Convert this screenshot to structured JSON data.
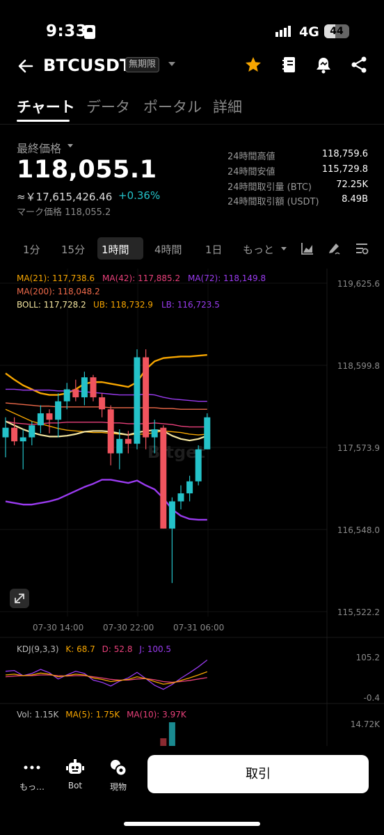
{
  "status_bar": {
    "time": "9:33",
    "network": "4G",
    "battery_level": "44",
    "battery_fraction": 0.44
  },
  "header": {
    "pair": "BTCUSDT",
    "contract_type": "無期限",
    "icons": [
      "back-arrow-icon",
      "star-icon",
      "notebook-icon",
      "bell-icon",
      "share-icon"
    ],
    "accent_color": "#F7A600"
  },
  "tabs": [
    {
      "label": "チャート",
      "active": true
    },
    {
      "label": "データ",
      "active": false
    },
    {
      "label": "ポータル",
      "active": false
    },
    {
      "label": "詳細",
      "active": false
    }
  ],
  "price": {
    "label": "最終価格",
    "last": "118,055.1",
    "fiat": "≈￥17,615,426.46",
    "change": "+0.36%",
    "change_color": "#24C2C9",
    "mark": "マーク価格 118,055.2"
  },
  "stats": [
    {
      "label": "24時間高値",
      "value": "118,759.6"
    },
    {
      "label": "24時間安値",
      "value": "115,729.8"
    },
    {
      "label": "24時間取引量 (BTC)",
      "value": "72.25K"
    },
    {
      "label": "24時間取引額 (USDT)",
      "value": "8.49B"
    }
  ],
  "intervals": {
    "items": [
      "1分",
      "15分",
      "1時間",
      "4時間",
      "1日"
    ],
    "active": "1時間",
    "more": "もっと",
    "tools": [
      "area-chart-icon",
      "draw-tool-icon",
      "indicator-settings-icon"
    ]
  },
  "chart": {
    "ma_legend": {
      "ma21": "MA(21): 117,738.6",
      "ma42": "MA(42): 117,885.2",
      "ma72": "MA(72): 118,149.8",
      "ma200": "MA(200): 118,048.2",
      "boll": "BOLL: 117,728.2",
      "ub": "UB: 118,732.9",
      "lb": "LB: 116,723.5"
    },
    "colors": {
      "ma21": "#F7A600",
      "ma42": "#E8407A",
      "ma72": "#9A3BF0",
      "ma200": "#F06A4A",
      "boll": "#F5E6A0",
      "up": "#24C2C9",
      "down": "#F0545E"
    },
    "price_axis": [
      "119,625.6",
      "118,599.8",
      "117,573.9",
      "116,548.0",
      "115,522.2"
    ],
    "time_axis": [
      "07-30 14:00",
      "07-30 22:00",
      "07-31 06:00"
    ],
    "watermark": "Bitget"
  },
  "chart_data": {
    "type": "candlestick",
    "ylim": [
      115522.2,
      119625.6
    ],
    "price_ticks": [
      119625.6,
      118599.8,
      117573.9,
      116548.0,
      115522.2
    ],
    "time_ticks": [
      "07-30 14:00",
      "07-30 22:00",
      "07-31 06:00"
    ],
    "candles": [
      [
        117700,
        117950,
        117450,
        117820
      ],
      [
        117820,
        117950,
        117600,
        117650
      ],
      [
        117650,
        117800,
        117300,
        117700
      ],
      [
        117700,
        117900,
        117600,
        117850
      ],
      [
        117850,
        118100,
        117750,
        118000
      ],
      [
        118000,
        118050,
        117750,
        117920
      ],
      [
        117920,
        118250,
        117700,
        118150
      ],
      [
        118150,
        118380,
        118050,
        118300
      ],
      [
        118300,
        118420,
        118150,
        118200
      ],
      [
        118200,
        118520,
        118100,
        118450
      ],
      [
        118450,
        118480,
        118150,
        118200
      ],
      [
        118200,
        118250,
        117950,
        118050
      ],
      [
        118050,
        118100,
        117350,
        117500
      ],
      [
        117500,
        117800,
        117300,
        117680
      ],
      [
        117680,
        117780,
        117500,
        117620
      ],
      [
        117620,
        118800,
        117550,
        118700
      ],
      [
        118700,
        118800,
        117550,
        117700
      ],
      [
        117700,
        117920,
        117500,
        117800
      ],
      [
        117820,
        117850,
        116560,
        116560
      ],
      [
        116560,
        116950,
        115880,
        116900
      ],
      [
        116900,
        117100,
        116800,
        117000
      ],
      [
        117000,
        117220,
        116900,
        117150
      ],
      [
        117150,
        117600,
        117100,
        117550
      ],
      [
        117550,
        118000,
        117550,
        117950
      ]
    ],
    "ma21": [
      118050,
      118000,
      117950,
      117900,
      117870,
      117840,
      117810,
      117790,
      117780,
      117770,
      117760,
      117760,
      117750,
      117740,
      117730,
      117740,
      117740,
      117760,
      117780,
      117770,
      117760,
      117740,
      117730,
      117740
    ],
    "ma42": [
      117900,
      117880,
      117870,
      117860,
      117870,
      117880,
      117880,
      117890,
      117890,
      117890,
      117890,
      117890,
      117880,
      117880,
      117870,
      117870,
      117870,
      117880,
      117870,
      117860,
      117840,
      117830,
      117830,
      117830
    ],
    "ma72": [
      118300,
      118300,
      118290,
      118290,
      118290,
      118290,
      118280,
      118280,
      118280,
      118270,
      118260,
      118250,
      118240,
      118230,
      118230,
      118230,
      118240,
      118230,
      118200,
      118180,
      118170,
      118160,
      118150,
      118150
    ],
    "ma200": [
      118130,
      118120,
      118110,
      118100,
      118090,
      118090,
      118080,
      118080,
      118080,
      118080,
      118080,
      118080,
      118070,
      118070,
      118070,
      118070,
      118070,
      118070,
      118060,
      118060,
      118050,
      118050,
      118050,
      118050
    ],
    "boll_mid": [
      117900,
      117850,
      117800,
      117760,
      117730,
      117710,
      117710,
      117720,
      117740,
      117770,
      117780,
      117780,
      117770,
      117750,
      117730,
      117760,
      117780,
      117790,
      117780,
      117720,
      117680,
      117660,
      117680,
      117720
    ],
    "boll_ub": [
      118500,
      118420,
      118350,
      118300,
      118250,
      118230,
      118230,
      118250,
      118300,
      118370,
      118390,
      118390,
      118370,
      118350,
      118330,
      118390,
      118550,
      118650,
      118690,
      118700,
      118710,
      118710,
      118720,
      118730
    ],
    "boll_lb": [
      116900,
      116880,
      116860,
      116860,
      116880,
      116900,
      116930,
      116980,
      117030,
      117080,
      117120,
      117170,
      117170,
      117150,
      117130,
      117160,
      117100,
      117050,
      116940,
      116800,
      116720,
      116680,
      116670,
      116670
    ],
    "kdj": {
      "label": "KDJ(9,3,3)",
      "k": "K: 68.7",
      "d": "D: 52.8",
      "j": "J: 100.5",
      "axis": [
        "105.2",
        "-0.4"
      ],
      "ylim": [
        -0.4,
        105.2
      ],
      "k_values": [
        60,
        62,
        58,
        60,
        65,
        62,
        55,
        58,
        62,
        60,
        52,
        48,
        42,
        45,
        48,
        55,
        50,
        42,
        35,
        38,
        45,
        52,
        60,
        68.7
      ],
      "d_values": [
        55,
        57,
        58,
        58,
        60,
        60,
        58,
        57,
        58,
        58,
        55,
        52,
        48,
        46,
        46,
        49,
        50,
        47,
        42,
        40,
        42,
        45,
        49,
        52.8
      ],
      "j_values": [
        70,
        72,
        58,
        64,
        75,
        66,
        49,
        60,
        70,
        64,
        46,
        40,
        30,
        43,
        52,
        67,
        50,
        32,
        21,
        34,
        51,
        66,
        82,
        100.5
      ]
    },
    "volume": {
      "vol": "Vol: 1.15K",
      "ma5": "MA(5): 1.75K",
      "ma10": "MA(10): 3.97K",
      "axis": "14.72K"
    }
  },
  "bottom_bar": {
    "more": "もっ…",
    "bot": "Bot",
    "spot": "現物",
    "trade": "取引"
  }
}
